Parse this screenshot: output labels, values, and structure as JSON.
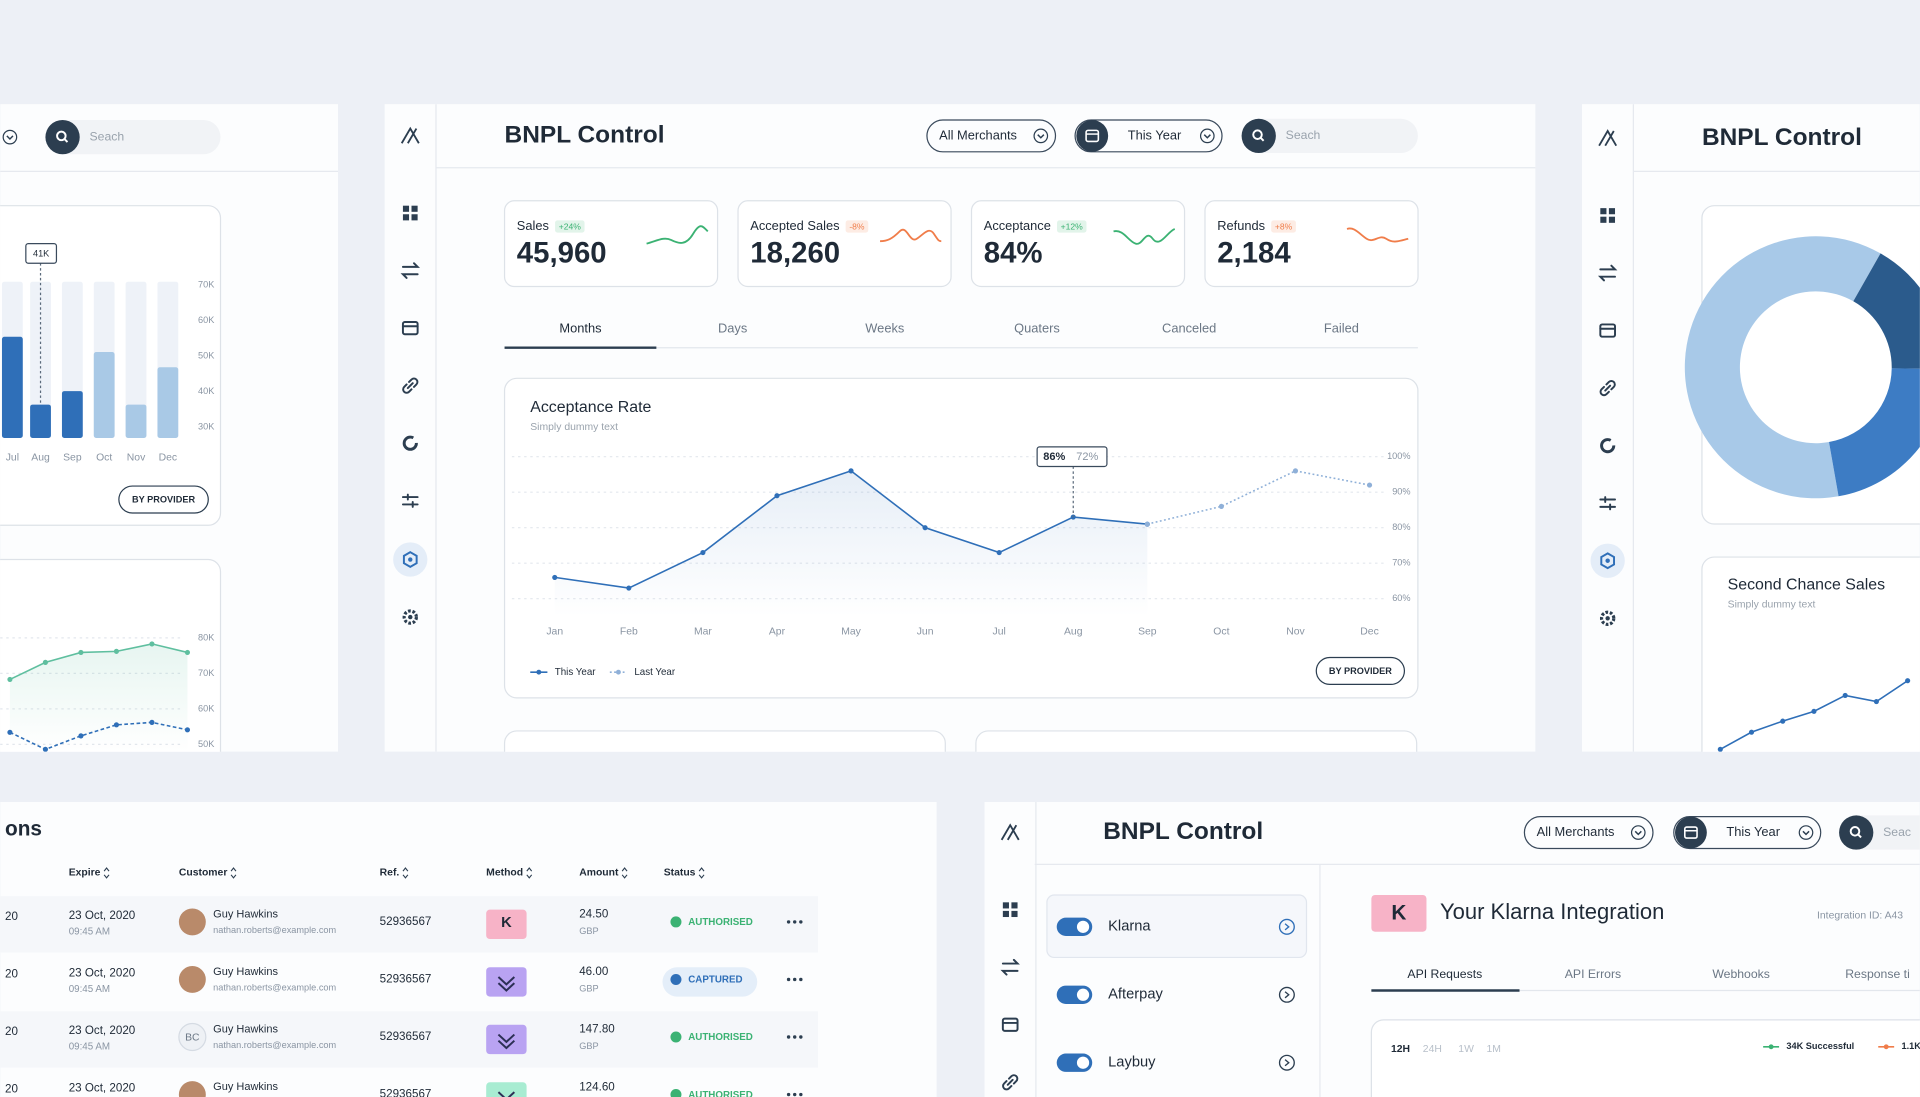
{
  "center": {
    "title": "BNPL Control",
    "merchant_filter": "All Merchants",
    "period_filter": "This Year",
    "search": "Seach",
    "kpis": [
      {
        "label": "Sales",
        "change": "+24%",
        "value": "45,960",
        "color": "#3bb273"
      },
      {
        "label": "Accepted Sales",
        "change": "-8%",
        "value": "18,260",
        "color": "#f07d4a"
      },
      {
        "label": "Acceptance",
        "change": "+12%",
        "value": "84%",
        "color": "#3bb273"
      },
      {
        "label": "Refunds",
        "change": "+8%",
        "value": "2,184",
        "color": "#f07d4a"
      }
    ],
    "tabs": [
      "Months",
      "Days",
      "Weeks",
      "Quaters",
      "Canceled",
      "Failed"
    ],
    "chart": {
      "type": "line",
      "title": "Acceptance Rate",
      "subtitle": "Simply dummy text",
      "categories": [
        "Jan",
        "Feb",
        "Mar",
        "Apr",
        "May",
        "Jun",
        "Jul",
        "Aug",
        "Sep",
        "Oct",
        "Nov",
        "Dec"
      ],
      "ylim": [
        55,
        100
      ],
      "yticks": [
        {
          "value": 60,
          "label": "60%"
        },
        {
          "value": 70,
          "label": "70%"
        },
        {
          "value": 80,
          "label": "80%"
        },
        {
          "value": 90,
          "label": "90%"
        },
        {
          "value": 100,
          "label": "100%"
        }
      ],
      "grid": true,
      "series": [
        {
          "name": "This Year",
          "color": "#2f6fb8",
          "values": [
            66,
            63,
            73,
            89,
            96,
            80,
            73,
            83,
            81,
            null,
            null,
            null
          ]
        },
        {
          "name": "Last Year",
          "color": "#8fb0d8",
          "values": [
            null,
            null,
            null,
            null,
            null,
            null,
            null,
            null,
            81,
            86,
            96,
            92
          ]
        }
      ],
      "tooltip": [
        "86%",
        "72%"
      ],
      "button": "BY PROVIDER"
    }
  },
  "left_panel": {
    "search": "Seach",
    "bar_chart": {
      "type": "bar",
      "categories": [
        "Jul",
        "Aug",
        "Sep",
        "Oct",
        "Nov",
        "Dec"
      ],
      "values": [
        55.5,
        36.4,
        40.2,
        51.2,
        36.4,
        46.9
      ],
      "colors": [
        "#2f6fb8",
        "#2f6fb8",
        "#2f6fb8",
        "#a9c9e6",
        "#a9c9e6",
        "#a9c9e6"
      ],
      "track_color": "#eef2f8",
      "ylim": [
        27,
        71
      ],
      "yticks": [
        {
          "value": 30,
          "label": "30K"
        },
        {
          "value": 40,
          "label": "40K"
        },
        {
          "value": 50,
          "label": "50K"
        },
        {
          "value": 60,
          "label": "60K"
        },
        {
          "value": 70,
          "label": "70K"
        }
      ],
      "tooltip": "41K",
      "button": "BY PROVIDER"
    },
    "area_chart": {
      "type": "line",
      "ylim": [
        48,
        82
      ],
      "yticks": [
        {
          "value": 50,
          "label": "50K"
        },
        {
          "value": 60,
          "label": "60K"
        },
        {
          "value": 70,
          "label": "70K"
        },
        {
          "value": 80,
          "label": "80K"
        }
      ],
      "grid": true,
      "series": [
        {
          "color": "#5fbf9f",
          "values": [
            68.3,
            73.1,
            75.9,
            76.2,
            78.3,
            75.9
          ]
        },
        {
          "color": "#2f6fb8",
          "values": [
            53.4,
            48.6,
            52.4,
            55.5,
            56.2,
            54.1
          ]
        }
      ]
    }
  },
  "right_panel": {
    "title": "BNPL Control",
    "donut": {
      "type": "pie",
      "values": [
        61,
        17,
        22
      ],
      "colors": [
        "#a8c9e8",
        "#2b5b8c",
        "#3d7cc4"
      ]
    },
    "line_chart": {
      "type": "line",
      "title": "Second Chance Sales",
      "subtitle": "Simply dummy text",
      "ylim": [
        0,
        100
      ],
      "values": [
        3,
        17,
        26,
        34,
        47,
        42,
        59
      ],
      "color": "#2f6fb8"
    }
  },
  "transactions": {
    "title": "ons",
    "columns": [
      "Expire",
      "Customer",
      "Ref.",
      "Method",
      "Amount",
      "Status"
    ],
    "rows": [
      {
        "id": "20",
        "date": "23 Oct, 2020",
        "time": "09:45 AM",
        "customer": "Guy Hawkins",
        "email": "nathan.roberts@example.com",
        "ref": "52936567",
        "method": "K",
        "method_color": "#f7b3c7",
        "amount": "24.50",
        "currency": "GBP",
        "status": "AUTHORISED",
        "status_color": "#3bb273"
      },
      {
        "id": "20",
        "date": "23 Oct, 2020",
        "time": "09:45 AM",
        "customer": "Guy Hawkins",
        "email": "nathan.roberts@example.com",
        "ref": "52936567",
        "method_color": "#b9a3f2",
        "amount": "46.00",
        "currency": "GBP",
        "status": "CAPTURED",
        "status_color": "#2f6fb8"
      },
      {
        "id": "20",
        "date": "23 Oct, 2020",
        "time": "09:45 AM",
        "customer": "Guy Hawkins",
        "initials": "BC",
        "email": "nathan.roberts@example.com",
        "ref": "52936567",
        "method_color": "#b9a3f2",
        "amount": "147.80",
        "currency": "GBP",
        "status": "AUTHORISED",
        "status_color": "#3bb273"
      },
      {
        "id": "20",
        "date": "23 Oct, 2020",
        "customer": "Guy Hawkins",
        "ref": "52936567",
        "method_color": "#a8ecd2",
        "amount": "124.60",
        "status": "AUTHORISED",
        "status_color": "#3bb273"
      }
    ]
  },
  "integration": {
    "title": "BNPL Control",
    "merchant_filter": "All Merchants",
    "period_filter": "This Year",
    "search": "Seac",
    "providers": [
      "Klarna",
      "Afterpay",
      "Laybuy"
    ],
    "badge": "K",
    "heading": "Your Klarna Integration",
    "integration_id": "Integration ID: A43",
    "tabs": [
      "API Requests",
      "API Errors",
      "Webhooks",
      "Response ti"
    ],
    "ranges": [
      "12H",
      "24H",
      "1W",
      "1M"
    ],
    "legend": [
      {
        "text": "34K Successful",
        "color": "#3bb273"
      },
      {
        "text": "1.1K",
        "color": "#f07d4a"
      }
    ]
  }
}
